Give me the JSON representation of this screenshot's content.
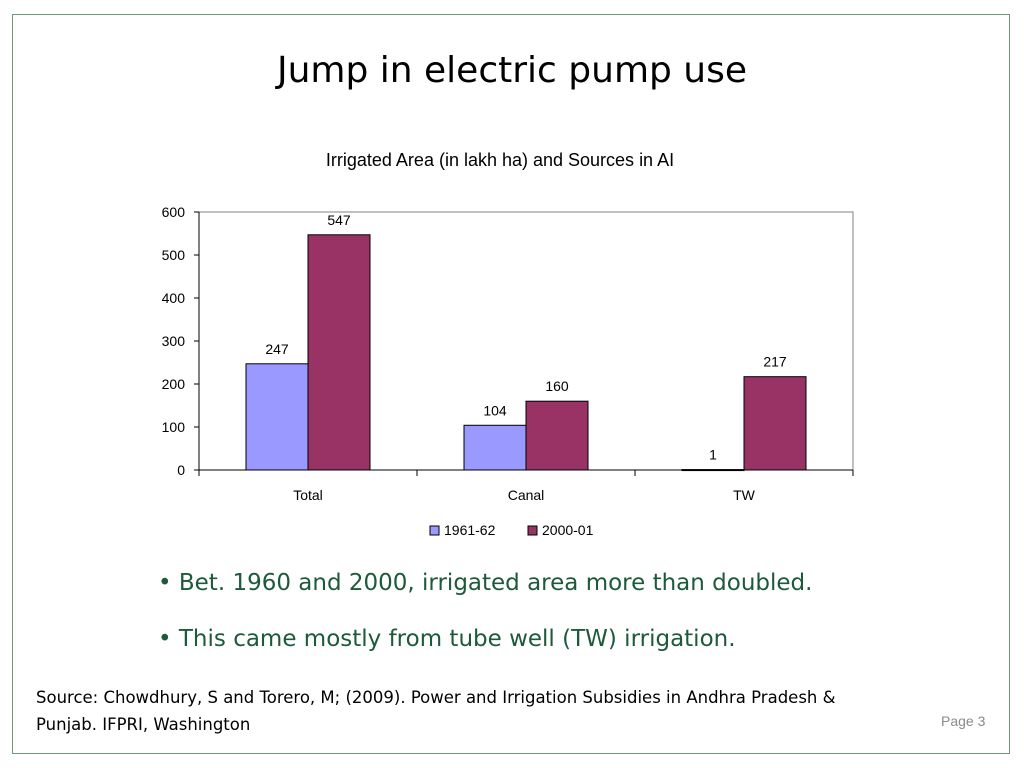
{
  "slide": {
    "title": "Jump in electric pump use",
    "bullets": [
      "• Bet. 1960 and 2000, irrigated area more than doubled.",
      "• This came mostly from tube well (TW) irrigation."
    ],
    "source": "Source: Chowdhury, S and Torero, M; (2009). Power and Irrigation Subsidies in Andhra Pradesh & Punjab. IFPRI, Washington",
    "page_label": "Page 3"
  },
  "chart_data": {
    "type": "bar",
    "title": "Irrigated Area (in lakh ha) and Sources in AI",
    "categories": [
      "Total",
      "Canal",
      "TW"
    ],
    "series": [
      {
        "name": "1961-62",
        "values": [
          247,
          104,
          1
        ],
        "color": "#9999ff"
      },
      {
        "name": "2000-01",
        "values": [
          547,
          160,
          217
        ],
        "color": "#993366"
      }
    ],
    "ylim": [
      0,
      600
    ],
    "yticks": [
      0,
      100,
      200,
      300,
      400,
      500,
      600
    ],
    "grid": false,
    "legend": "bottom",
    "data_labels": true
  }
}
